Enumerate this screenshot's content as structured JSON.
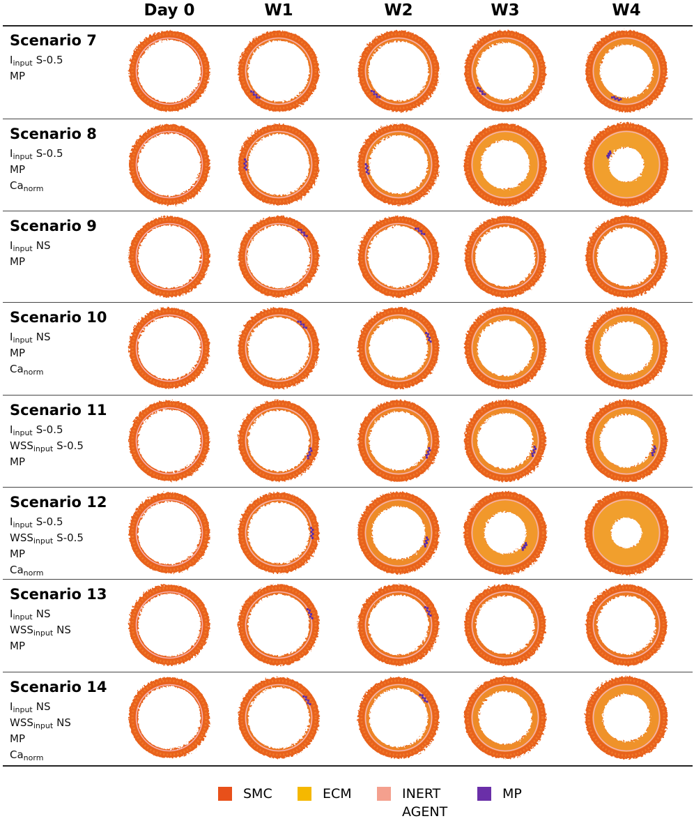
{
  "columns": [
    "Day 0",
    "W1",
    "W2",
    "W3",
    "W4"
  ],
  "rows": [
    {
      "title": "Scenario 7",
      "params": [
        {
          "base": "I",
          "sub": "input",
          "value": "S-0.5"
        },
        {
          "base": "MP"
        }
      ]
    },
    {
      "title": "Scenario 8",
      "params": [
        {
          "base": "I",
          "sub": "input",
          "value": "S-0.5"
        },
        {
          "base": "MP"
        },
        {
          "base": "Ca",
          "sub": "norm"
        }
      ]
    },
    {
      "title": "Scenario 9",
      "params": [
        {
          "base": "I",
          "sub": "input",
          "value": "NS"
        },
        {
          "base": "MP"
        }
      ]
    },
    {
      "title": "Scenario 10",
      "params": [
        {
          "base": "I",
          "sub": "input",
          "value": "NS"
        },
        {
          "base": "MP"
        },
        {
          "base": "Ca",
          "sub": "norm"
        }
      ]
    },
    {
      "title": "Scenario 11",
      "params": [
        {
          "base": "I",
          "sub": "input",
          "value": "S-0.5"
        },
        {
          "base": "WSS",
          "sub": "input",
          "value": "S-0.5"
        },
        {
          "base": "MP"
        }
      ]
    },
    {
      "title": "Scenario 12",
      "params": [
        {
          "base": "I",
          "sub": "input",
          "value": "S-0.5"
        },
        {
          "base": "WSS",
          "sub": "input",
          "value": "S-0.5"
        },
        {
          "base": "MP"
        },
        {
          "base": "Ca",
          "sub": "norm"
        }
      ]
    },
    {
      "title": "Scenario 13",
      "params": [
        {
          "base": "I",
          "sub": "input",
          "value": "NS"
        },
        {
          "base": "WSS",
          "sub": "input",
          "value": "NS"
        },
        {
          "base": "MP"
        }
      ]
    },
    {
      "title": "Scenario 14",
      "params": [
        {
          "base": "I",
          "sub": "input",
          "value": "NS"
        },
        {
          "base": "WSS",
          "sub": "input",
          "value": "NS"
        },
        {
          "base": "MP"
        },
        {
          "base": "Ca",
          "sub": "norm"
        }
      ]
    }
  ],
  "legend": [
    {
      "label": "SMC",
      "color": "#e8501a"
    },
    {
      "label": "ECM",
      "color": "#f5b800"
    },
    {
      "label": "INERT AGENT",
      "color": "#f4a08e"
    },
    {
      "label": "MP",
      "color": "#6a2fa8"
    }
  ]
}
